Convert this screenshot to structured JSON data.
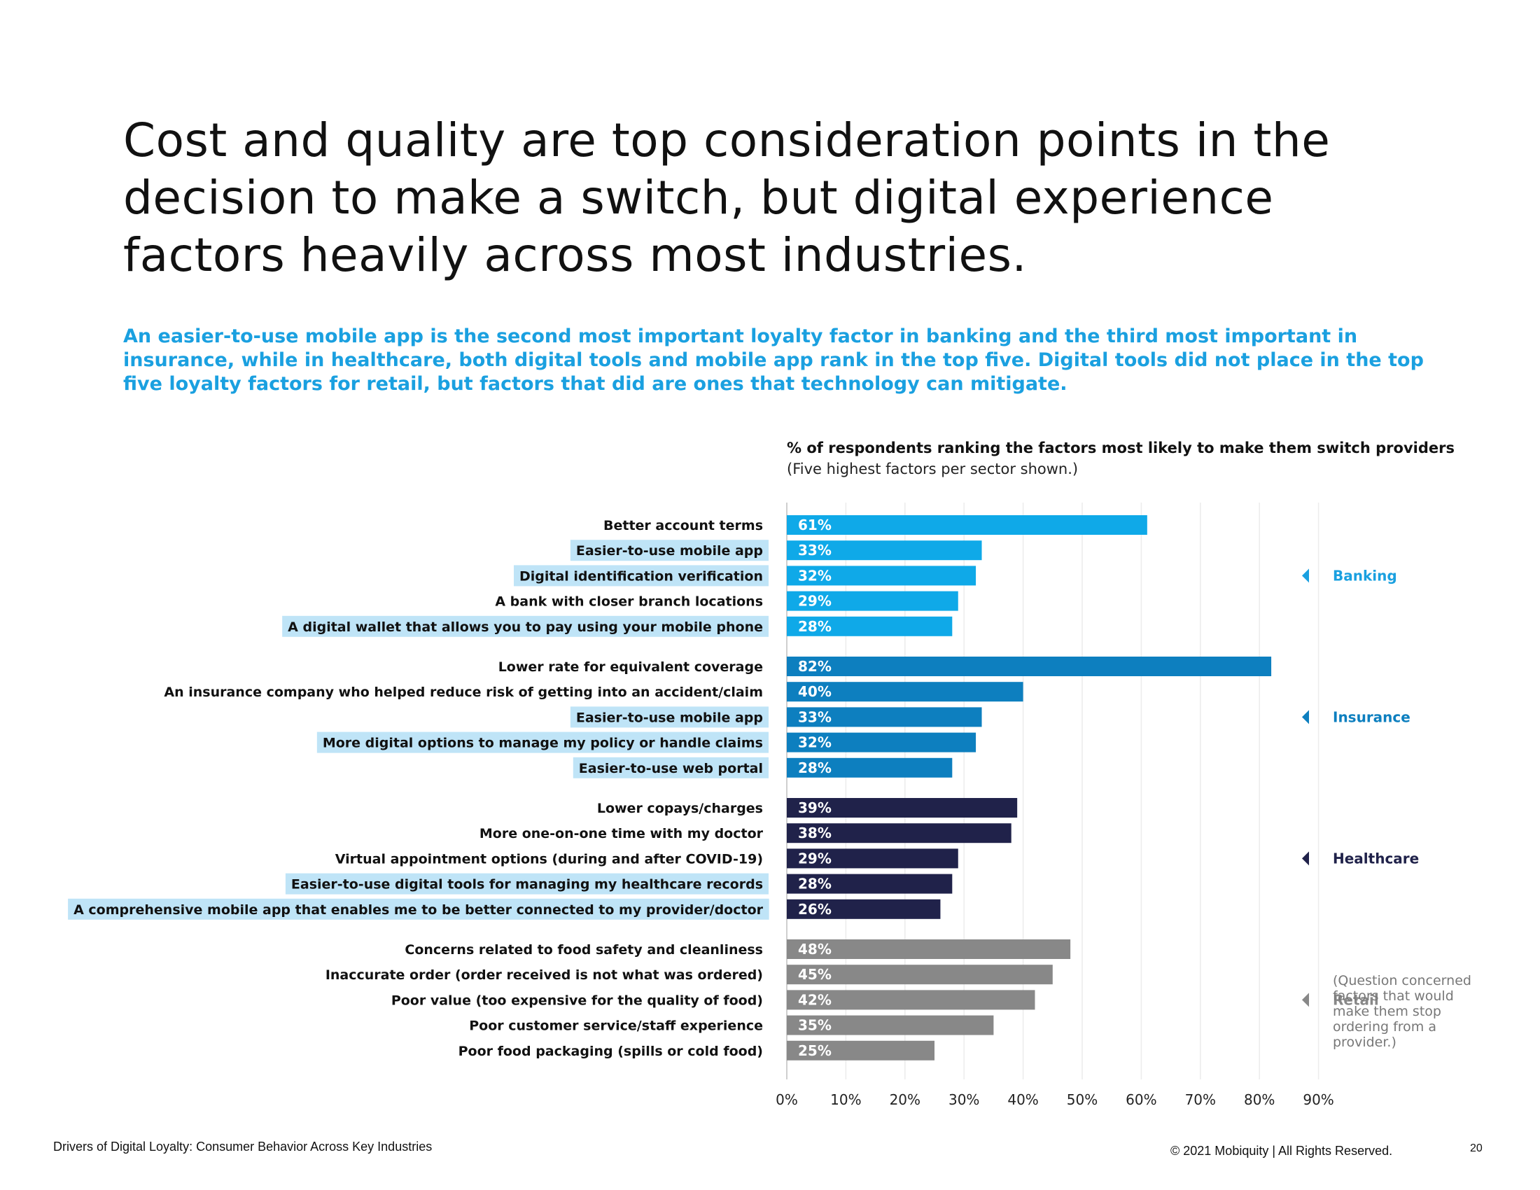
{
  "headline": "Cost and quality are top consideration points in the decision to make a switch, but digital experience factors heavily across most industries.",
  "subhead": "An easier-to-use mobile app is the second most important loyalty factor in banking and the third most important in insurance, while in healthcare, both digital tools and mobile app rank in the top five. Digital tools did not place in the top five loyalty factors for retail, but factors that did are ones that technology can mitigate.",
  "footer": {
    "left": "Drivers of Digital Loyalty: Consumer Behavior Across Key Industries",
    "right": "© 2021 Mobiquity  |  All Rights Reserved.",
    "page": "20"
  },
  "retail_note": "(Question concerned factors that would make them stop ordering from a provider.)",
  "chart_data": {
    "type": "bar",
    "orientation": "horizontal",
    "title": "% of respondents ranking the factors  most likely to make them switch providers",
    "subtitle": "(Five highest factors per sector shown.)",
    "xlim": [
      0,
      90
    ],
    "ticks": [
      0,
      10,
      20,
      30,
      40,
      50,
      60,
      70,
      80,
      90
    ],
    "tick_labels": [
      "0%",
      "10%",
      "20%",
      "30%",
      "40%",
      "50%",
      "60%",
      "70%",
      "80%",
      "90%"
    ],
    "highlight_color": "#bfe4f7",
    "groups": [
      {
        "name": "Banking",
        "color": "#0fa9e8",
        "label_color": "#1aa0e0",
        "bars": [
          {
            "label": "Better account terms",
            "value": 61,
            "display": "61%",
            "highlight": false
          },
          {
            "label": "Easier-to-use mobile app",
            "value": 33,
            "display": "33%",
            "highlight": true
          },
          {
            "label": "Digital identification verification",
            "value": 32,
            "display": "32%",
            "highlight": true
          },
          {
            "label": "A bank with closer branch locations",
            "value": 29,
            "display": "29%",
            "highlight": false
          },
          {
            "label": "A digital wallet that allows you to pay using your mobile phone",
            "value": 28,
            "display": "28%",
            "highlight": true
          }
        ]
      },
      {
        "name": "Insurance",
        "color": "#0d7fbf",
        "label_color": "#0d7fbf",
        "bars": [
          {
            "label": "Lower rate for equivalent coverage",
            "value": 82,
            "display": "82%",
            "highlight": false
          },
          {
            "label": "An insurance company who helped reduce risk of getting into an accident/claim",
            "value": 40,
            "display": "40%",
            "highlight": false
          },
          {
            "label": "Easier-to-use mobile app",
            "value": 33,
            "display": "33%",
            "highlight": true
          },
          {
            "label": "More digital options to manage my policy or handle claims",
            "value": 32,
            "display": "32%",
            "highlight": true
          },
          {
            "label": "Easier-to-use web portal",
            "value": 28,
            "display": "28%",
            "highlight": true
          }
        ]
      },
      {
        "name": "Healthcare",
        "color": "#20224a",
        "label_color": "#20224a",
        "bars": [
          {
            "label": "Lower copays/charges",
            "value": 39,
            "display": "39%",
            "highlight": false
          },
          {
            "label": "More one-on-one time with my doctor",
            "value": 38,
            "display": "38%",
            "highlight": false
          },
          {
            "label": "Virtual appointment options (during and after COVID-19)",
            "value": 29,
            "display": "29%",
            "highlight": false
          },
          {
            "label": "Easier-to-use digital tools for managing my healthcare records",
            "value": 28,
            "display": "28%",
            "highlight": true
          },
          {
            "label": "A comprehensive mobile app that enables me to be better connected to my provider/doctor",
            "value": 26,
            "display": "26%",
            "highlight": true
          }
        ]
      },
      {
        "name": "Retail",
        "color": "#888888",
        "label_color": "#888888",
        "bars": [
          {
            "label": "Concerns related to food safety and cleanliness",
            "value": 48,
            "display": "48%",
            "highlight": false
          },
          {
            "label": "Inaccurate order (order received is not what was ordered)",
            "value": 45,
            "display": "45%",
            "highlight": false
          },
          {
            "label": "Poor value (too expensive for the quality of food)",
            "value": 42,
            "display": "42%",
            "highlight": false
          },
          {
            "label": "Poor customer service/staff experience",
            "value": 35,
            "display": "35%",
            "highlight": false
          },
          {
            "label": "Poor food packaging (spills or cold food)",
            "value": 25,
            "display": "25%",
            "highlight": false
          }
        ]
      }
    ]
  }
}
